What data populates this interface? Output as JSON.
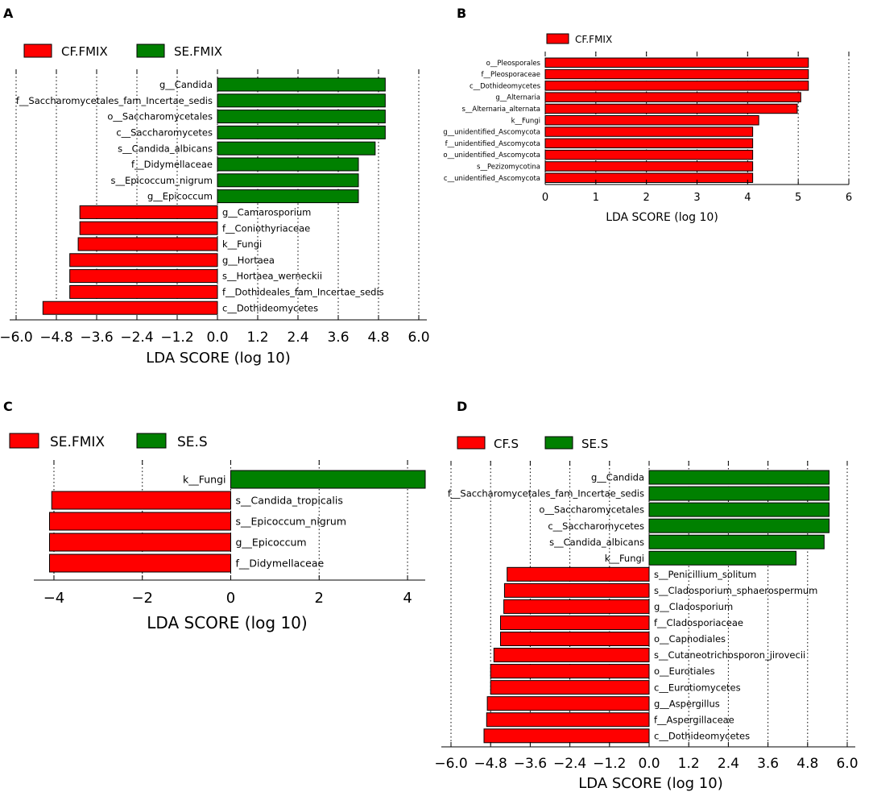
{
  "colors": {
    "neg": "#ff0000",
    "pos": "#008000"
  },
  "chart_data": [
    {
      "panel_label": "A",
      "type": "bar",
      "orientation": "horizontal",
      "xlabel": "LDA SCORE (log 10)",
      "xlim": [
        -6.0,
        6.0
      ],
      "xticks": [
        -6.0,
        -4.8,
        -3.6,
        -2.4,
        -1.2,
        0.0,
        1.2,
        2.4,
        3.6,
        4.8,
        6.0
      ],
      "tick_labels": [
        "−6.0",
        "−4.8",
        "−3.6",
        "−2.4",
        "−1.2",
        "0.0",
        "1.2",
        "2.4",
        "3.6",
        "4.8",
        "6.0"
      ],
      "legend": [
        {
          "name": "CF.FMIX",
          "color": "#ff0000"
        },
        {
          "name": "SE.FMIX",
          "color": "#008000"
        }
      ],
      "bars": [
        {
          "label": "g__Candida",
          "value": 5.0,
          "group": "SE.FMIX"
        },
        {
          "label": "f__Saccharomycetales_fam_Incertae_sedis",
          "value": 5.0,
          "group": "SE.FMIX"
        },
        {
          "label": "o__Saccharomycetales",
          "value": 5.0,
          "group": "SE.FMIX"
        },
        {
          "label": "c__Saccharomycetes",
          "value": 5.0,
          "group": "SE.FMIX"
        },
        {
          "label": "s__Candida_albicans",
          "value": 4.7,
          "group": "SE.FMIX"
        },
        {
          "label": "f__Didymellaceae",
          "value": 4.2,
          "group": "SE.FMIX"
        },
        {
          "label": "s__Epicoccum_nigrum",
          "value": 4.2,
          "group": "SE.FMIX"
        },
        {
          "label": "g__Epicoccum",
          "value": 4.2,
          "group": "SE.FMIX"
        },
        {
          "label": "g__Camarosporium",
          "value": -4.1,
          "group": "CF.FMIX"
        },
        {
          "label": "f__Coniothyriaceae",
          "value": -4.1,
          "group": "CF.FMIX"
        },
        {
          "label": "k__Fungi",
          "value": -4.15,
          "group": "CF.FMIX"
        },
        {
          "label": "g__Hortaea",
          "value": -4.4,
          "group": "CF.FMIX"
        },
        {
          "label": "s__Hortaea_werneckii",
          "value": -4.4,
          "group": "CF.FMIX"
        },
        {
          "label": "f__Dothideales_fam_Incertae_sedis",
          "value": -4.4,
          "group": "CF.FMIX"
        },
        {
          "label": "c__Dothideomycetes",
          "value": -5.2,
          "group": "CF.FMIX"
        }
      ]
    },
    {
      "panel_label": "B",
      "type": "bar",
      "orientation": "horizontal",
      "xlabel": "LDA SCORE (log 10)",
      "xlim": [
        0,
        6
      ],
      "xticks": [
        0,
        1,
        2,
        3,
        4,
        5,
        6
      ],
      "tick_labels": [
        "0",
        "1",
        "2",
        "3",
        "4",
        "5",
        "6"
      ],
      "legend": [
        {
          "name": "CF.FMIX",
          "color": "#ff0000"
        }
      ],
      "bars": [
        {
          "label": "o__Pleosporales",
          "value": 5.2,
          "group": "CF.FMIX"
        },
        {
          "label": "f__Pleosporaceae",
          "value": 5.2,
          "group": "CF.FMIX"
        },
        {
          "label": "c__Dothideomycetes",
          "value": 5.2,
          "group": "CF.FMIX"
        },
        {
          "label": "g__Alternaria",
          "value": 5.05,
          "group": "CF.FMIX"
        },
        {
          "label": "s__Alternaria_alternata",
          "value": 4.98,
          "group": "CF.FMIX"
        },
        {
          "label": "k__Fungi",
          "value": 4.22,
          "group": "CF.FMIX"
        },
        {
          "label": "g__unidentified_Ascomycota",
          "value": 4.1,
          "group": "CF.FMIX"
        },
        {
          "label": "f__unidentified_Ascomycota",
          "value": 4.1,
          "group": "CF.FMIX"
        },
        {
          "label": "o__unidentified_Ascomycota",
          "value": 4.1,
          "group": "CF.FMIX"
        },
        {
          "label": "s__Pezizomycotina",
          "value": 4.1,
          "group": "CF.FMIX"
        },
        {
          "label": "c__unidentified_Ascomycota",
          "value": 4.1,
          "group": "CF.FMIX"
        }
      ]
    },
    {
      "panel_label": "C",
      "type": "bar",
      "orientation": "horizontal",
      "xlabel": "LDA SCORE (log 10)",
      "xlim": [
        -4.2,
        4.4
      ],
      "xticks": [
        -4,
        -2,
        0,
        2,
        4
      ],
      "tick_labels": [
        "−4",
        "−2",
        "0",
        "2",
        "4"
      ],
      "legend": [
        {
          "name": "SE.FMIX",
          "color": "#ff0000"
        },
        {
          "name": "SE.S",
          "color": "#008000"
        }
      ],
      "bars": [
        {
          "label": "k__Fungi",
          "value": 4.4,
          "group": "SE.S"
        },
        {
          "label": "s__Candida_tropicalis",
          "value": -4.05,
          "group": "SE.FMIX"
        },
        {
          "label": "s__Epicoccum_nigrum",
          "value": -4.1,
          "group": "SE.FMIX"
        },
        {
          "label": "g__Epicoccum",
          "value": -4.1,
          "group": "SE.FMIX"
        },
        {
          "label": "f__Didymellaceae",
          "value": -4.1,
          "group": "SE.FMIX"
        }
      ]
    },
    {
      "panel_label": "D",
      "type": "bar",
      "orientation": "horizontal",
      "xlabel": "LDA SCORE (log 10)",
      "xlim": [
        -6.0,
        6.0
      ],
      "xticks": [
        -6.0,
        -4.8,
        -3.6,
        -2.4,
        -1.2,
        0.0,
        1.2,
        2.4,
        3.6,
        4.8,
        6.0
      ],
      "tick_labels": [
        "−6.0",
        "−4.8",
        "−3.6",
        "−2.4",
        "−1.2",
        "0.0",
        "1.2",
        "2.4",
        "3.6",
        "4.8",
        "6.0"
      ],
      "legend": [
        {
          "name": "CF.S",
          "color": "#ff0000"
        },
        {
          "name": "SE.S",
          "color": "#008000"
        }
      ],
      "bars": [
        {
          "label": "g__Candida",
          "value": 5.45,
          "group": "SE.S"
        },
        {
          "label": "f__Saccharomycetales_fam_Incertae_sedis",
          "value": 5.45,
          "group": "SE.S"
        },
        {
          "label": "o__Saccharomycetales",
          "value": 5.45,
          "group": "SE.S"
        },
        {
          "label": "c__Saccharomycetes",
          "value": 5.45,
          "group": "SE.S"
        },
        {
          "label": "s__Candida_albicans",
          "value": 5.3,
          "group": "SE.S"
        },
        {
          "label": "k__Fungi",
          "value": 4.45,
          "group": "SE.S"
        },
        {
          "label": "s__Penicillium_solitum",
          "value": -4.3,
          "group": "CF.S"
        },
        {
          "label": "s__Cladosporium_sphaerospermum",
          "value": -4.38,
          "group": "CF.S"
        },
        {
          "label": "g__Cladosporium",
          "value": -4.4,
          "group": "CF.S"
        },
        {
          "label": "f__Cladosporiaceae",
          "value": -4.5,
          "group": "CF.S"
        },
        {
          "label": "o__Capnodiales",
          "value": -4.5,
          "group": "CF.S"
        },
        {
          "label": "s__Cutaneotrichosporon_jirovecii",
          "value": -4.7,
          "group": "CF.S"
        },
        {
          "label": "o__Eurotiales",
          "value": -4.8,
          "group": "CF.S"
        },
        {
          "label": "c__Eurotiomycetes",
          "value": -4.8,
          "group": "CF.S"
        },
        {
          "label": "g__Aspergillus",
          "value": -4.9,
          "group": "CF.S"
        },
        {
          "label": "f__Aspergillaceae",
          "value": -4.92,
          "group": "CF.S"
        },
        {
          "label": "c__Dothideomycetes",
          "value": -5.0,
          "group": "CF.S"
        }
      ]
    }
  ]
}
